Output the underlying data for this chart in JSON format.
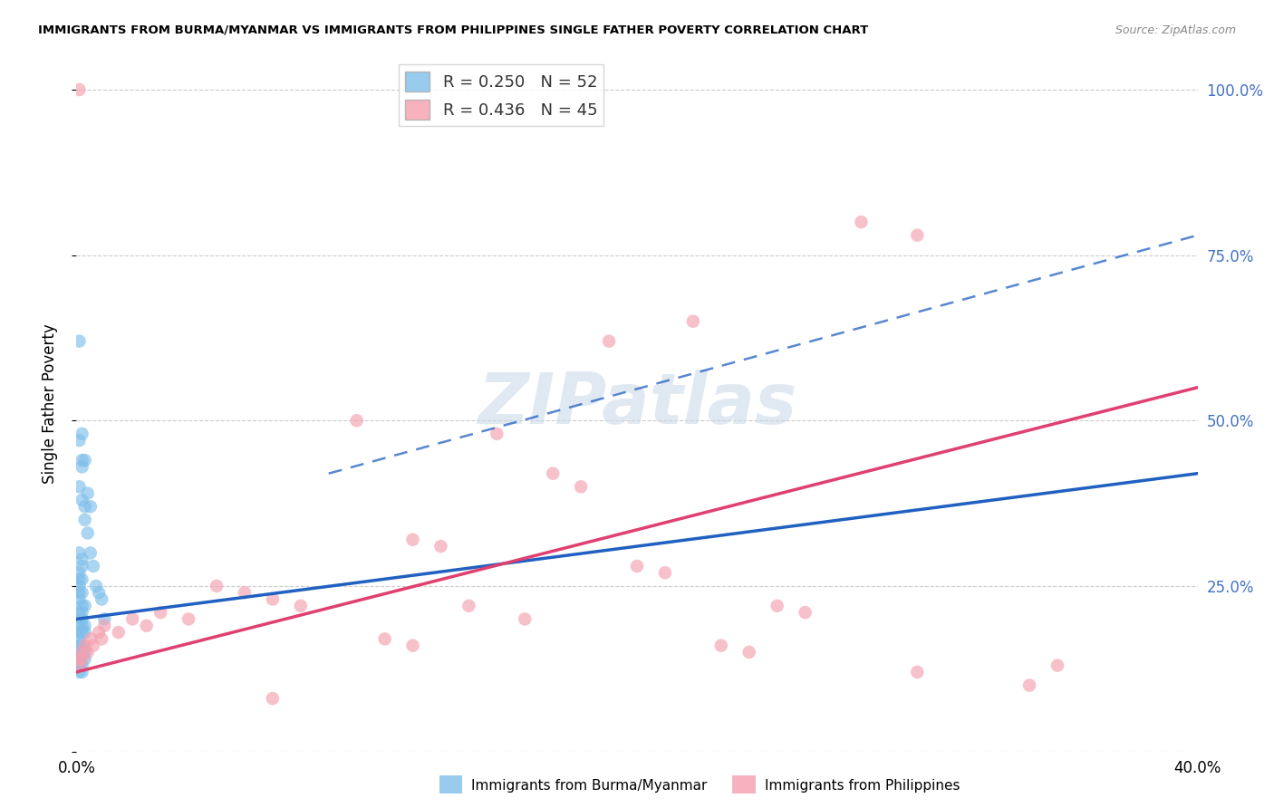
{
  "title": "IMMIGRANTS FROM BURMA/MYANMAR VS IMMIGRANTS FROM PHILIPPINES SINGLE FATHER POVERTY CORRELATION CHART",
  "source": "Source: ZipAtlas.com",
  "ylabel": "Single Father Poverty",
  "legend_blue_label": "Immigrants from Burma/Myanmar",
  "legend_pink_label": "Immigrants from Philippines",
  "R_blue": 0.25,
  "N_blue": 52,
  "R_pink": 0.436,
  "N_pink": 45,
  "blue_color": "#7fbfea",
  "pink_color": "#f4a0b0",
  "blue_line_color": "#2060c0",
  "pink_line_color": "#e04070",
  "blue_scatter": [
    [
      0.001,
      0.62
    ],
    [
      0.002,
      0.48
    ],
    [
      0.003,
      0.44
    ],
    [
      0.001,
      0.47
    ],
    [
      0.002,
      0.44
    ],
    [
      0.002,
      0.43
    ],
    [
      0.001,
      0.4
    ],
    [
      0.002,
      0.38
    ],
    [
      0.003,
      0.37
    ],
    [
      0.001,
      0.3
    ],
    [
      0.002,
      0.29
    ],
    [
      0.002,
      0.28
    ],
    [
      0.001,
      0.27
    ],
    [
      0.001,
      0.26
    ],
    [
      0.002,
      0.26
    ],
    [
      0.001,
      0.25
    ],
    [
      0.001,
      0.24
    ],
    [
      0.002,
      0.24
    ],
    [
      0.001,
      0.23
    ],
    [
      0.002,
      0.22
    ],
    [
      0.003,
      0.22
    ],
    [
      0.001,
      0.21
    ],
    [
      0.002,
      0.21
    ],
    [
      0.002,
      0.2
    ],
    [
      0.001,
      0.19
    ],
    [
      0.002,
      0.19
    ],
    [
      0.003,
      0.19
    ],
    [
      0.001,
      0.18
    ],
    [
      0.002,
      0.18
    ],
    [
      0.003,
      0.18
    ],
    [
      0.001,
      0.17
    ],
    [
      0.001,
      0.16
    ],
    [
      0.002,
      0.16
    ],
    [
      0.001,
      0.15
    ],
    [
      0.002,
      0.15
    ],
    [
      0.001,
      0.14
    ],
    [
      0.003,
      0.35
    ],
    [
      0.004,
      0.33
    ],
    [
      0.005,
      0.3
    ],
    [
      0.006,
      0.28
    ],
    [
      0.007,
      0.25
    ],
    [
      0.008,
      0.24
    ],
    [
      0.009,
      0.23
    ],
    [
      0.01,
      0.2
    ],
    [
      0.004,
      0.39
    ],
    [
      0.005,
      0.37
    ],
    [
      0.003,
      0.14
    ],
    [
      0.003,
      0.15
    ],
    [
      0.002,
      0.13
    ],
    [
      0.002,
      0.12
    ],
    [
      0.001,
      0.13
    ],
    [
      0.001,
      0.12
    ]
  ],
  "pink_scatter": [
    [
      0.001,
      1.0
    ],
    [
      0.28,
      0.8
    ],
    [
      0.3,
      0.78
    ],
    [
      0.22,
      0.65
    ],
    [
      0.19,
      0.62
    ],
    [
      0.15,
      0.48
    ],
    [
      0.1,
      0.5
    ],
    [
      0.17,
      0.42
    ],
    [
      0.18,
      0.4
    ],
    [
      0.2,
      0.28
    ],
    [
      0.21,
      0.27
    ],
    [
      0.12,
      0.32
    ],
    [
      0.13,
      0.31
    ],
    [
      0.25,
      0.22
    ],
    [
      0.26,
      0.21
    ],
    [
      0.14,
      0.22
    ],
    [
      0.16,
      0.2
    ],
    [
      0.05,
      0.25
    ],
    [
      0.06,
      0.24
    ],
    [
      0.07,
      0.23
    ],
    [
      0.08,
      0.22
    ],
    [
      0.03,
      0.21
    ],
    [
      0.04,
      0.2
    ],
    [
      0.02,
      0.2
    ],
    [
      0.025,
      0.19
    ],
    [
      0.01,
      0.19
    ],
    [
      0.015,
      0.18
    ],
    [
      0.008,
      0.18
    ],
    [
      0.009,
      0.17
    ],
    [
      0.005,
      0.17
    ],
    [
      0.006,
      0.16
    ],
    [
      0.003,
      0.16
    ],
    [
      0.004,
      0.15
    ],
    [
      0.002,
      0.15
    ],
    [
      0.002,
      0.14
    ],
    [
      0.001,
      0.14
    ],
    [
      0.001,
      0.13
    ],
    [
      0.3,
      0.12
    ],
    [
      0.34,
      0.1
    ],
    [
      0.23,
      0.16
    ],
    [
      0.24,
      0.15
    ],
    [
      0.35,
      0.13
    ],
    [
      0.11,
      0.17
    ],
    [
      0.12,
      0.16
    ],
    [
      0.07,
      0.08
    ]
  ],
  "blue_reg": [
    0.0,
    0.4,
    0.2,
    0.42
  ],
  "pink_reg": [
    0.0,
    0.4,
    0.12,
    0.55
  ],
  "blue_dash": [
    0.09,
    0.4,
    0.42,
    0.78
  ],
  "xlim": [
    0.0,
    0.4
  ],
  "ylim": [
    0.0,
    1.05
  ],
  "y_ticks": [
    0.0,
    0.25,
    0.5,
    0.75,
    1.0
  ],
  "y_tick_labels_right": [
    "",
    "25.0%",
    "50.0%",
    "75.0%",
    "100.0%"
  ],
  "x_ticks": [
    0.0,
    0.1,
    0.2,
    0.3,
    0.4
  ],
  "x_tick_labels": [
    "0.0%",
    "",
    "",
    "",
    "40.0%"
  ]
}
